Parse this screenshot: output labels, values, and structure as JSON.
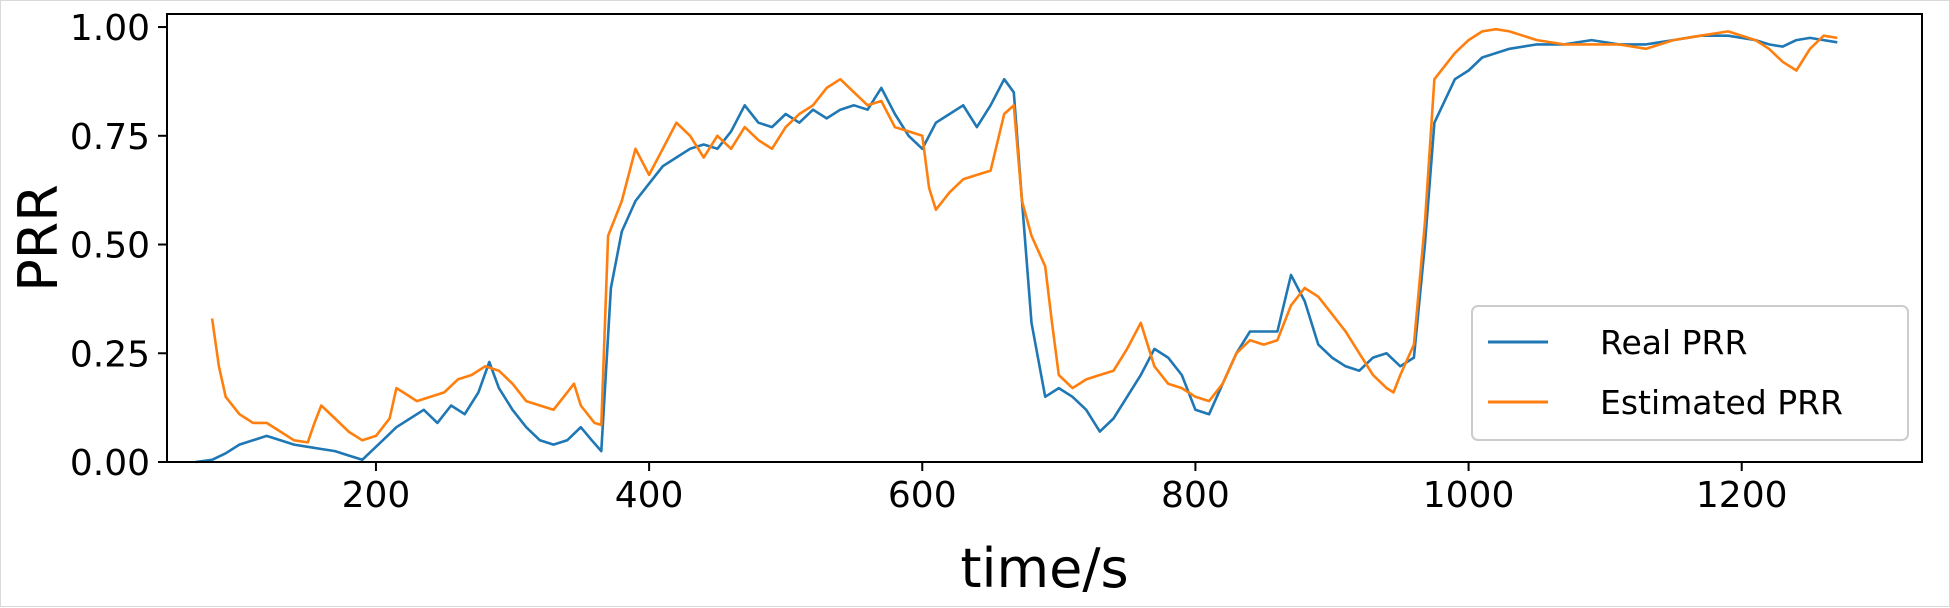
{
  "chart_data": {
    "type": "line",
    "title": "",
    "xlabel": "time/s",
    "ylabel": "PRR",
    "xlim": [
      47,
      1332
    ],
    "ylim": [
      0,
      1.03
    ],
    "xticks": [
      200,
      400,
      600,
      800,
      1000,
      1200
    ],
    "xtick_labels": [
      "200",
      "400",
      "600",
      "800",
      "1000",
      "1200"
    ],
    "yticks": [
      0,
      0.25,
      0.5,
      0.75,
      1.0
    ],
    "ytick_labels": [
      "0.00",
      "0.25",
      "0.50",
      "0.75",
      "1.00"
    ],
    "grid": false,
    "legend_position": "lower-right",
    "series": [
      {
        "name": "Real PRR",
        "color": "#1f77b4",
        "points": [
          [
            68,
            0
          ],
          [
            80,
            0.005
          ],
          [
            90,
            0.02
          ],
          [
            100,
            0.04
          ],
          [
            110,
            0.05
          ],
          [
            120,
            0.06
          ],
          [
            130,
            0.05
          ],
          [
            140,
            0.04
          ],
          [
            150,
            0.035
          ],
          [
            160,
            0.03
          ],
          [
            170,
            0.025
          ],
          [
            180,
            0.015
          ],
          [
            190,
            0.005
          ],
          [
            195,
            0.02
          ],
          [
            205,
            0.05
          ],
          [
            215,
            0.08
          ],
          [
            225,
            0.1
          ],
          [
            235,
            0.12
          ],
          [
            245,
            0.09
          ],
          [
            255,
            0.13
          ],
          [
            265,
            0.11
          ],
          [
            275,
            0.16
          ],
          [
            283,
            0.23
          ],
          [
            290,
            0.17
          ],
          [
            300,
            0.12
          ],
          [
            310,
            0.08
          ],
          [
            320,
            0.05
          ],
          [
            330,
            0.04
          ],
          [
            340,
            0.05
          ],
          [
            350,
            0.08
          ],
          [
            358,
            0.05
          ],
          [
            365,
            0.025
          ],
          [
            372,
            0.4
          ],
          [
            380,
            0.53
          ],
          [
            390,
            0.6
          ],
          [
            400,
            0.64
          ],
          [
            410,
            0.68
          ],
          [
            420,
            0.7
          ],
          [
            430,
            0.72
          ],
          [
            440,
            0.73
          ],
          [
            450,
            0.72
          ],
          [
            460,
            0.76
          ],
          [
            470,
            0.82
          ],
          [
            480,
            0.78
          ],
          [
            490,
            0.77
          ],
          [
            500,
            0.8
          ],
          [
            510,
            0.78
          ],
          [
            520,
            0.81
          ],
          [
            530,
            0.79
          ],
          [
            540,
            0.81
          ],
          [
            550,
            0.82
          ],
          [
            560,
            0.81
          ],
          [
            570,
            0.86
          ],
          [
            580,
            0.8
          ],
          [
            590,
            0.75
          ],
          [
            600,
            0.72
          ],
          [
            610,
            0.78
          ],
          [
            620,
            0.8
          ],
          [
            630,
            0.82
          ],
          [
            640,
            0.77
          ],
          [
            650,
            0.82
          ],
          [
            660,
            0.88
          ],
          [
            667,
            0.85
          ],
          [
            673,
            0.6
          ],
          [
            680,
            0.32
          ],
          [
            690,
            0.15
          ],
          [
            700,
            0.17
          ],
          [
            710,
            0.15
          ],
          [
            720,
            0.12
          ],
          [
            730,
            0.07
          ],
          [
            740,
            0.1
          ],
          [
            750,
            0.15
          ],
          [
            760,
            0.2
          ],
          [
            770,
            0.26
          ],
          [
            780,
            0.24
          ],
          [
            790,
            0.2
          ],
          [
            800,
            0.12
          ],
          [
            810,
            0.11
          ],
          [
            820,
            0.18
          ],
          [
            830,
            0.25
          ],
          [
            840,
            0.3
          ],
          [
            850,
            0.3
          ],
          [
            860,
            0.3
          ],
          [
            870,
            0.43
          ],
          [
            880,
            0.37
          ],
          [
            890,
            0.27
          ],
          [
            900,
            0.24
          ],
          [
            910,
            0.22
          ],
          [
            920,
            0.21
          ],
          [
            930,
            0.24
          ],
          [
            940,
            0.25
          ],
          [
            950,
            0.22
          ],
          [
            960,
            0.24
          ],
          [
            968,
            0.5
          ],
          [
            975,
            0.78
          ],
          [
            990,
            0.88
          ],
          [
            1000,
            0.9
          ],
          [
            1010,
            0.93
          ],
          [
            1020,
            0.94
          ],
          [
            1030,
            0.95
          ],
          [
            1050,
            0.96
          ],
          [
            1070,
            0.96
          ],
          [
            1090,
            0.97
          ],
          [
            1110,
            0.96
          ],
          [
            1130,
            0.96
          ],
          [
            1150,
            0.97
          ],
          [
            1170,
            0.98
          ],
          [
            1190,
            0.98
          ],
          [
            1210,
            0.97
          ],
          [
            1220,
            0.96
          ],
          [
            1230,
            0.955
          ],
          [
            1240,
            0.97
          ],
          [
            1250,
            0.975
          ],
          [
            1260,
            0.97
          ],
          [
            1270,
            0.965
          ]
        ]
      },
      {
        "name": "Estimated PRR",
        "color": "#ff7f0e",
        "points": [
          [
            80,
            0.33
          ],
          [
            85,
            0.22
          ],
          [
            90,
            0.15
          ],
          [
            100,
            0.11
          ],
          [
            110,
            0.09
          ],
          [
            120,
            0.09
          ],
          [
            130,
            0.07
          ],
          [
            140,
            0.05
          ],
          [
            150,
            0.045
          ],
          [
            155,
            0.09
          ],
          [
            160,
            0.13
          ],
          [
            170,
            0.1
          ],
          [
            180,
            0.07
          ],
          [
            190,
            0.05
          ],
          [
            200,
            0.06
          ],
          [
            210,
            0.1
          ],
          [
            215,
            0.17
          ],
          [
            220,
            0.16
          ],
          [
            230,
            0.14
          ],
          [
            240,
            0.15
          ],
          [
            250,
            0.16
          ],
          [
            260,
            0.19
          ],
          [
            270,
            0.2
          ],
          [
            280,
            0.22
          ],
          [
            290,
            0.21
          ],
          [
            300,
            0.18
          ],
          [
            310,
            0.14
          ],
          [
            320,
            0.13
          ],
          [
            330,
            0.12
          ],
          [
            340,
            0.16
          ],
          [
            345,
            0.18
          ],
          [
            350,
            0.13
          ],
          [
            360,
            0.09
          ],
          [
            365,
            0.085
          ],
          [
            370,
            0.52
          ],
          [
            380,
            0.6
          ],
          [
            390,
            0.72
          ],
          [
            400,
            0.66
          ],
          [
            410,
            0.72
          ],
          [
            420,
            0.78
          ],
          [
            430,
            0.75
          ],
          [
            440,
            0.7
          ],
          [
            450,
            0.75
          ],
          [
            460,
            0.72
          ],
          [
            470,
            0.77
          ],
          [
            480,
            0.74
          ],
          [
            490,
            0.72
          ],
          [
            500,
            0.77
          ],
          [
            510,
            0.8
          ],
          [
            520,
            0.82
          ],
          [
            530,
            0.86
          ],
          [
            540,
            0.88
          ],
          [
            550,
            0.85
          ],
          [
            560,
            0.82
          ],
          [
            570,
            0.83
          ],
          [
            580,
            0.77
          ],
          [
            590,
            0.76
          ],
          [
            600,
            0.75
          ],
          [
            605,
            0.63
          ],
          [
            610,
            0.58
          ],
          [
            620,
            0.62
          ],
          [
            630,
            0.65
          ],
          [
            640,
            0.66
          ],
          [
            650,
            0.67
          ],
          [
            660,
            0.8
          ],
          [
            667,
            0.82
          ],
          [
            673,
            0.6
          ],
          [
            680,
            0.52
          ],
          [
            690,
            0.45
          ],
          [
            695,
            0.32
          ],
          [
            700,
            0.2
          ],
          [
            710,
            0.17
          ],
          [
            720,
            0.19
          ],
          [
            730,
            0.2
          ],
          [
            740,
            0.21
          ],
          [
            750,
            0.26
          ],
          [
            760,
            0.32
          ],
          [
            770,
            0.22
          ],
          [
            780,
            0.18
          ],
          [
            790,
            0.17
          ],
          [
            800,
            0.15
          ],
          [
            810,
            0.14
          ],
          [
            820,
            0.18
          ],
          [
            830,
            0.25
          ],
          [
            840,
            0.28
          ],
          [
            850,
            0.27
          ],
          [
            860,
            0.28
          ],
          [
            870,
            0.36
          ],
          [
            880,
            0.4
          ],
          [
            890,
            0.38
          ],
          [
            900,
            0.34
          ],
          [
            910,
            0.3
          ],
          [
            920,
            0.25
          ],
          [
            930,
            0.2
          ],
          [
            940,
            0.17
          ],
          [
            945,
            0.16
          ],
          [
            950,
            0.2
          ],
          [
            960,
            0.27
          ],
          [
            968,
            0.55
          ],
          [
            975,
            0.88
          ],
          [
            990,
            0.94
          ],
          [
            1000,
            0.97
          ],
          [
            1010,
            0.99
          ],
          [
            1020,
            0.995
          ],
          [
            1030,
            0.99
          ],
          [
            1050,
            0.97
          ],
          [
            1070,
            0.96
          ],
          [
            1090,
            0.96
          ],
          [
            1110,
            0.96
          ],
          [
            1130,
            0.95
          ],
          [
            1150,
            0.97
          ],
          [
            1170,
            0.98
          ],
          [
            1190,
            0.99
          ],
          [
            1210,
            0.97
          ],
          [
            1220,
            0.95
          ],
          [
            1230,
            0.92
          ],
          [
            1240,
            0.9
          ],
          [
            1250,
            0.95
          ],
          [
            1260,
            0.98
          ],
          [
            1270,
            0.975
          ]
        ]
      }
    ]
  }
}
